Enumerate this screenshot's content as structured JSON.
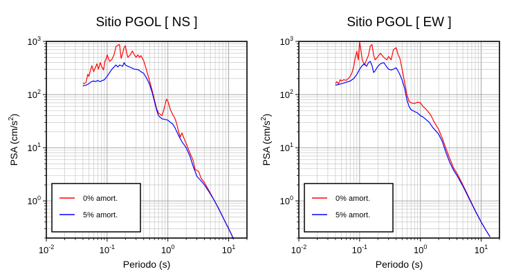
{
  "chart_data": [
    {
      "type": "line",
      "title": "Sitio PGOL [ NS ]",
      "xlabel": "Periodo (s)",
      "ylabel_main": "PSA (cm/s",
      "ylabel_sup": "2",
      "ylabel_end": ")",
      "xscale": "log",
      "yscale": "log",
      "xlim": [
        0.01,
        20
      ],
      "ylim": [
        0.2,
        1000
      ],
      "grid": true,
      "legend_position": "bottom-left",
      "x_ticks": [
        {
          "base": "10",
          "exp": "-2"
        },
        {
          "base": "10",
          "exp": "-1"
        },
        {
          "base": "10",
          "exp": "0"
        },
        {
          "base": "10",
          "exp": "1"
        }
      ],
      "y_ticks": [
        {
          "base": "10",
          "exp": "0"
        },
        {
          "base": "10",
          "exp": "1"
        },
        {
          "base": "10",
          "exp": "2"
        },
        {
          "base": "10",
          "exp": "3"
        }
      ],
      "series": [
        {
          "name": "0% amort.",
          "color": "#ff0000",
          "points": [
            [
              0.04,
              165
            ],
            [
              0.042,
              160
            ],
            [
              0.045,
              170
            ],
            [
              0.048,
              240
            ],
            [
              0.05,
              220
            ],
            [
              0.053,
              280
            ],
            [
              0.056,
              350
            ],
            [
              0.06,
              270
            ],
            [
              0.064,
              320
            ],
            [
              0.068,
              380
            ],
            [
              0.072,
              300
            ],
            [
              0.077,
              400
            ],
            [
              0.082,
              330
            ],
            [
              0.087,
              290
            ],
            [
              0.092,
              420
            ],
            [
              0.097,
              480
            ],
            [
              0.1,
              560
            ],
            [
              0.11,
              420
            ],
            [
              0.12,
              460
            ],
            [
              0.13,
              560
            ],
            [
              0.14,
              800
            ],
            [
              0.15,
              850
            ],
            [
              0.16,
              870
            ],
            [
              0.17,
              480
            ],
            [
              0.18,
              600
            ],
            [
              0.19,
              760
            ],
            [
              0.2,
              830
            ],
            [
              0.21,
              600
            ],
            [
              0.22,
              500
            ],
            [
              0.24,
              560
            ],
            [
              0.26,
              660
            ],
            [
              0.28,
              560
            ],
            [
              0.3,
              500
            ],
            [
              0.32,
              560
            ],
            [
              0.34,
              500
            ],
            [
              0.36,
              540
            ],
            [
              0.38,
              480
            ],
            [
              0.4,
              430
            ],
            [
              0.43,
              330
            ],
            [
              0.46,
              250
            ],
            [
              0.5,
              180
            ],
            [
              0.55,
              120
            ],
            [
              0.6,
              80
            ],
            [
              0.65,
              55
            ],
            [
              0.7,
              45
            ],
            [
              0.8,
              40
            ],
            [
              0.85,
              50
            ],
            [
              0.9,
              65
            ],
            [
              0.95,
              82
            ],
            [
              1.0,
              75
            ],
            [
              1.1,
              52
            ],
            [
              1.2,
              42
            ],
            [
              1.3,
              36
            ],
            [
              1.4,
              28
            ],
            [
              1.5,
              20
            ],
            [
              1.6,
              16
            ],
            [
              1.7,
              19
            ],
            [
              1.8,
              16
            ],
            [
              2.0,
              12
            ],
            [
              2.3,
              8
            ],
            [
              2.6,
              5.8
            ],
            [
              2.8,
              3.9
            ],
            [
              3.2,
              3.6
            ],
            [
              3.5,
              2.7
            ],
            [
              4,
              2.2
            ],
            [
              5,
              1.4
            ],
            [
              6,
              0.95
            ],
            [
              7,
              0.68
            ],
            [
              8,
              0.5
            ],
            [
              9,
              0.38
            ],
            [
              10,
              0.3
            ],
            [
              11,
              0.24
            ],
            [
              12,
              0.19
            ]
          ]
        },
        {
          "name": "5% amort.",
          "color": "#0000ff",
          "points": [
            [
              0.04,
              145
            ],
            [
              0.042,
              148
            ],
            [
              0.045,
              150
            ],
            [
              0.05,
              160
            ],
            [
              0.055,
              175
            ],
            [
              0.06,
              180
            ],
            [
              0.065,
              175
            ],
            [
              0.07,
              185
            ],
            [
              0.075,
              175
            ],
            [
              0.08,
              180
            ],
            [
              0.09,
              190
            ],
            [
              0.1,
              220
            ],
            [
              0.11,
              260
            ],
            [
              0.12,
              300
            ],
            [
              0.13,
              330
            ],
            [
              0.14,
              360
            ],
            [
              0.15,
              330
            ],
            [
              0.16,
              360
            ],
            [
              0.17,
              350
            ],
            [
              0.18,
              340
            ],
            [
              0.19,
              400
            ],
            [
              0.2,
              360
            ],
            [
              0.22,
              340
            ],
            [
              0.25,
              320
            ],
            [
              0.28,
              300
            ],
            [
              0.3,
              300
            ],
            [
              0.33,
              290
            ],
            [
              0.36,
              270
            ],
            [
              0.4,
              250
            ],
            [
              0.45,
              200
            ],
            [
              0.5,
              155
            ],
            [
              0.55,
              110
            ],
            [
              0.6,
              75
            ],
            [
              0.65,
              52
            ],
            [
              0.7,
              40
            ],
            [
              0.8,
              35
            ],
            [
              0.9,
              34
            ],
            [
              1.0,
              33
            ],
            [
              1.1,
              30
            ],
            [
              1.2,
              28
            ],
            [
              1.3,
              24
            ],
            [
              1.5,
              17
            ],
            [
              1.7,
              13
            ],
            [
              2.0,
              10
            ],
            [
              2.3,
              7
            ],
            [
              2.6,
              4.5
            ],
            [
              3.0,
              2.9
            ],
            [
              3.5,
              2.4
            ],
            [
              4,
              2.0
            ],
            [
              5,
              1.35
            ],
            [
              6,
              0.95
            ],
            [
              7,
              0.68
            ],
            [
              8,
              0.5
            ],
            [
              9,
              0.38
            ],
            [
              10,
              0.3
            ],
            [
              11,
              0.24
            ],
            [
              12,
              0.19
            ]
          ]
        }
      ]
    },
    {
      "type": "line",
      "title": "Sitio PGOL [ EW ]",
      "xlabel": "Periodo (s)",
      "ylabel_main": "PSA (cm/s",
      "ylabel_sup": "2",
      "ylabel_end": ")",
      "xscale": "log",
      "yscale": "log",
      "xlim": [
        0.01,
        20
      ],
      "ylim": [
        0.2,
        1000
      ],
      "grid": true,
      "legend_position": "bottom-left",
      "x_ticks": [
        {
          "base": "10",
          "exp": "-2"
        },
        {
          "base": "10",
          "exp": "-1"
        },
        {
          "base": "10",
          "exp": "0"
        },
        {
          "base": "10",
          "exp": "1"
        }
      ],
      "y_ticks": [
        {
          "base": "10",
          "exp": "0"
        },
        {
          "base": "10",
          "exp": "1"
        },
        {
          "base": "10",
          "exp": "2"
        },
        {
          "base": "10",
          "exp": "3"
        }
      ],
      "series": [
        {
          "name": "0% amort.",
          "color": "#ff0000",
          "points": [
            [
              0.04,
              160
            ],
            [
              0.042,
              175
            ],
            [
              0.045,
              160
            ],
            [
              0.048,
              190
            ],
            [
              0.05,
              180
            ],
            [
              0.055,
              190
            ],
            [
              0.06,
              185
            ],
            [
              0.065,
              200
            ],
            [
              0.07,
              220
            ],
            [
              0.075,
              260
            ],
            [
              0.08,
              340
            ],
            [
              0.085,
              500
            ],
            [
              0.09,
              650
            ],
            [
              0.095,
              450
            ],
            [
              0.1,
              980
            ],
            [
              0.105,
              700
            ],
            [
              0.11,
              460
            ],
            [
              0.12,
              360
            ],
            [
              0.13,
              450
            ],
            [
              0.14,
              550
            ],
            [
              0.15,
              820
            ],
            [
              0.16,
              870
            ],
            [
              0.17,
              550
            ],
            [
              0.18,
              450
            ],
            [
              0.2,
              520
            ],
            [
              0.22,
              600
            ],
            [
              0.25,
              500
            ],
            [
              0.28,
              450
            ],
            [
              0.3,
              520
            ],
            [
              0.33,
              450
            ],
            [
              0.36,
              700
            ],
            [
              0.4,
              760
            ],
            [
              0.43,
              560
            ],
            [
              0.46,
              480
            ],
            [
              0.5,
              300
            ],
            [
              0.55,
              170
            ],
            [
              0.6,
              100
            ],
            [
              0.65,
              75
            ],
            [
              0.7,
              70
            ],
            [
              0.8,
              68
            ],
            [
              0.9,
              72
            ],
            [
              1.0,
              70
            ],
            [
              1.1,
              60
            ],
            [
              1.2,
              55
            ],
            [
              1.3,
              50
            ],
            [
              1.5,
              40
            ],
            [
              1.7,
              30
            ],
            [
              2.0,
              22
            ],
            [
              2.3,
              15
            ],
            [
              2.6,
              10
            ],
            [
              3.0,
              6.5
            ],
            [
              3.5,
              4.2
            ],
            [
              4,
              3.3
            ],
            [
              5,
              2.0
            ],
            [
              6,
              1.3
            ],
            [
              7,
              0.9
            ],
            [
              8,
              0.65
            ],
            [
              10,
              0.4
            ],
            [
              12,
              0.28
            ],
            [
              14,
              0.21
            ]
          ]
        },
        {
          "name": "5% amort.",
          "color": "#0000ff",
          "points": [
            [
              0.04,
              150
            ],
            [
              0.045,
              155
            ],
            [
              0.05,
              160
            ],
            [
              0.06,
              170
            ],
            [
              0.07,
              180
            ],
            [
              0.08,
              200
            ],
            [
              0.09,
              240
            ],
            [
              0.1,
              300
            ],
            [
              0.11,
              350
            ],
            [
              0.12,
              380
            ],
            [
              0.13,
              340
            ],
            [
              0.14,
              400
            ],
            [
              0.15,
              420
            ],
            [
              0.16,
              350
            ],
            [
              0.17,
              260
            ],
            [
              0.18,
              280
            ],
            [
              0.2,
              340
            ],
            [
              0.22,
              380
            ],
            [
              0.25,
              400
            ],
            [
              0.28,
              330
            ],
            [
              0.3,
              300
            ],
            [
              0.33,
              290
            ],
            [
              0.36,
              300
            ],
            [
              0.4,
              320
            ],
            [
              0.45,
              250
            ],
            [
              0.5,
              190
            ],
            [
              0.55,
              130
            ],
            [
              0.6,
              80
            ],
            [
              0.65,
              60
            ],
            [
              0.7,
              52
            ],
            [
              0.8,
              48
            ],
            [
              0.9,
              45
            ],
            [
              1.0,
              40
            ],
            [
              1.1,
              38
            ],
            [
              1.2,
              35
            ],
            [
              1.4,
              30
            ],
            [
              1.6,
              24
            ],
            [
              2.0,
              18
            ],
            [
              2.3,
              13
            ],
            [
              2.6,
              8.5
            ],
            [
              3.0,
              5.5
            ],
            [
              3.5,
              3.8
            ],
            [
              4,
              3.0
            ],
            [
              5,
              1.9
            ],
            [
              6,
              1.25
            ],
            [
              7,
              0.88
            ],
            [
              8,
              0.65
            ],
            [
              10,
              0.4
            ],
            [
              12,
              0.28
            ],
            [
              14,
              0.21
            ]
          ]
        }
      ]
    }
  ]
}
